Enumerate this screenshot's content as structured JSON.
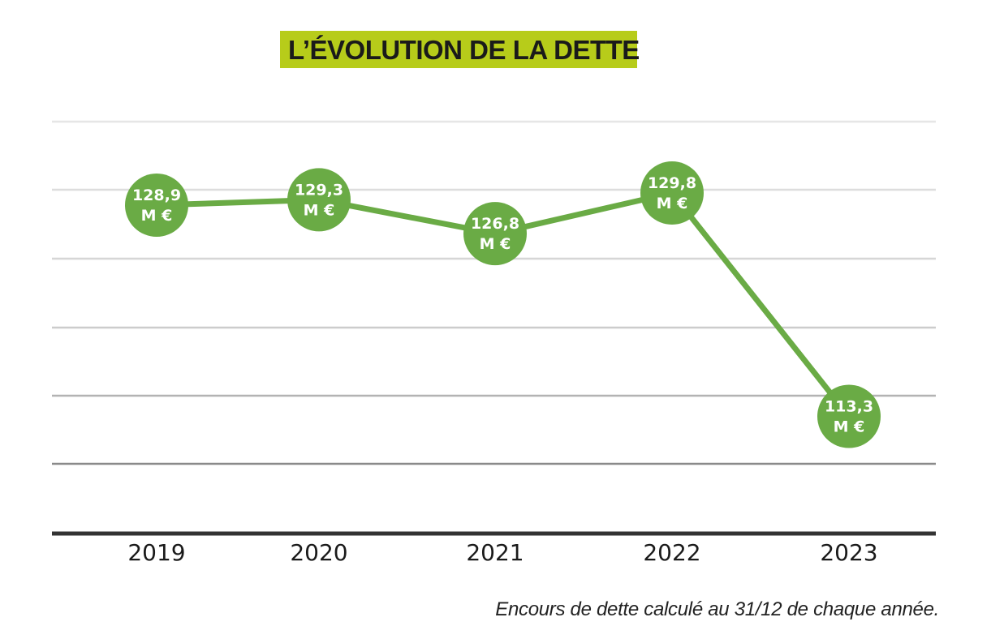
{
  "title": "L’ÉVOLUTION DE LA DETTE",
  "footnote": "Encours de dette calculé au 31/12 de chaque année.",
  "colors": {
    "title_background": "#b7cc1a",
    "series": "#6aab45",
    "label_text": "#ffffff",
    "axis": "#333333",
    "grid": "#d6d6d6"
  },
  "chart_data": {
    "type": "line",
    "title": "L’ÉVOLUTION DE LA DETTE",
    "categories": [
      "2019",
      "2020",
      "2021",
      "2022",
      "2023"
    ],
    "values": [
      128.9,
      129.3,
      126.8,
      129.8,
      113.3
    ],
    "value_labels": [
      [
        "128,9",
        "M €"
      ],
      [
        "129,3",
        "M €"
      ],
      [
        "126,8",
        "M €"
      ],
      [
        "129,8",
        "M €"
      ],
      [
        "113,3",
        "M €"
      ]
    ],
    "xlabel": "",
    "ylabel": "",
    "ylim": [
      105,
      135
    ],
    "grid": true,
    "legend": "none"
  }
}
